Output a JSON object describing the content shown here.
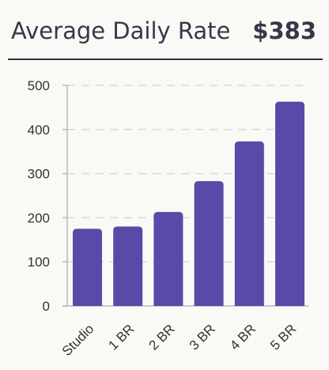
{
  "header": {
    "title": "Average Daily Rate",
    "value": "$383"
  },
  "colors": {
    "bar": "#5a49a8",
    "gridline": "#d8d8dc",
    "axis": "#b8b8c0",
    "text": "#353849"
  },
  "chart_data": {
    "type": "bar",
    "categories": [
      "Studio",
      "1 BR",
      "2 BR",
      "3 BR",
      "4 BR",
      "5 BR"
    ],
    "values": [
      175,
      180,
      213,
      283,
      373,
      463
    ],
    "title": "",
    "xlabel": "",
    "ylabel": "",
    "ylim": [
      0,
      500
    ],
    "yticks": [
      0,
      100,
      200,
      300,
      400,
      500
    ],
    "grid": true,
    "legend": "none"
  }
}
